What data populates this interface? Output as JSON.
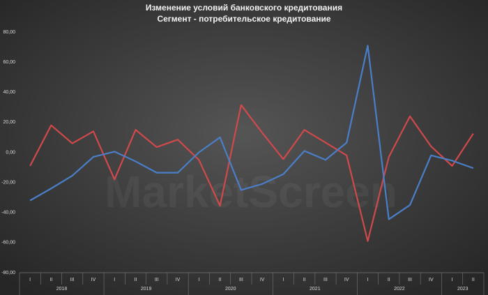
{
  "chart_data": {
    "type": "line",
    "title": "Изменение условий банковского кредитования",
    "subtitle": "Сегмент - потребительское кредитование",
    "watermark": "MarketScreen",
    "categories": [
      "I",
      "II",
      "III",
      "IV",
      "I",
      "II",
      "III",
      "IV",
      "I",
      "II",
      "III",
      "IV",
      "I",
      "II",
      "III",
      "IV",
      "I",
      "II",
      "III",
      "IV",
      "I",
      "II"
    ],
    "years": [
      "2018",
      "2019",
      "2020",
      "2021",
      "2022",
      "2023"
    ],
    "series": [
      {
        "color": "#d0494b",
        "values": [
          -9,
          18,
          6,
          14,
          -18,
          15,
          3.5,
          8.5,
          -5,
          -35.5,
          31.5,
          13,
          -4.5,
          15,
          6.5,
          -2,
          -59,
          -3,
          24,
          4,
          -9,
          12.5
        ]
      },
      {
        "color": "#4a7fc8",
        "values": [
          -32,
          -24,
          -15.5,
          -3,
          0.5,
          -6,
          -13.5,
          -13.5,
          0,
          10,
          -25,
          -21,
          -14.5,
          1,
          -5,
          6.5,
          71,
          -44.5,
          -35,
          -2,
          -5.5,
          -10.5
        ]
      }
    ],
    "ylim": [
      -80,
      80
    ],
    "yticks": [
      {
        "value": -80,
        "label": "-80,00"
      },
      {
        "value": -60,
        "label": "-60,00"
      },
      {
        "value": -40,
        "label": "-40,00"
      },
      {
        "value": -20,
        "label": "-20,00"
      },
      {
        "value": 0,
        "label": "0,00"
      },
      {
        "value": 20,
        "label": "20,00"
      },
      {
        "value": 40,
        "label": "40,00"
      },
      {
        "value": 60,
        "label": "60,00"
      },
      {
        "value": 80,
        "label": "80,00"
      }
    ],
    "grid": false
  }
}
